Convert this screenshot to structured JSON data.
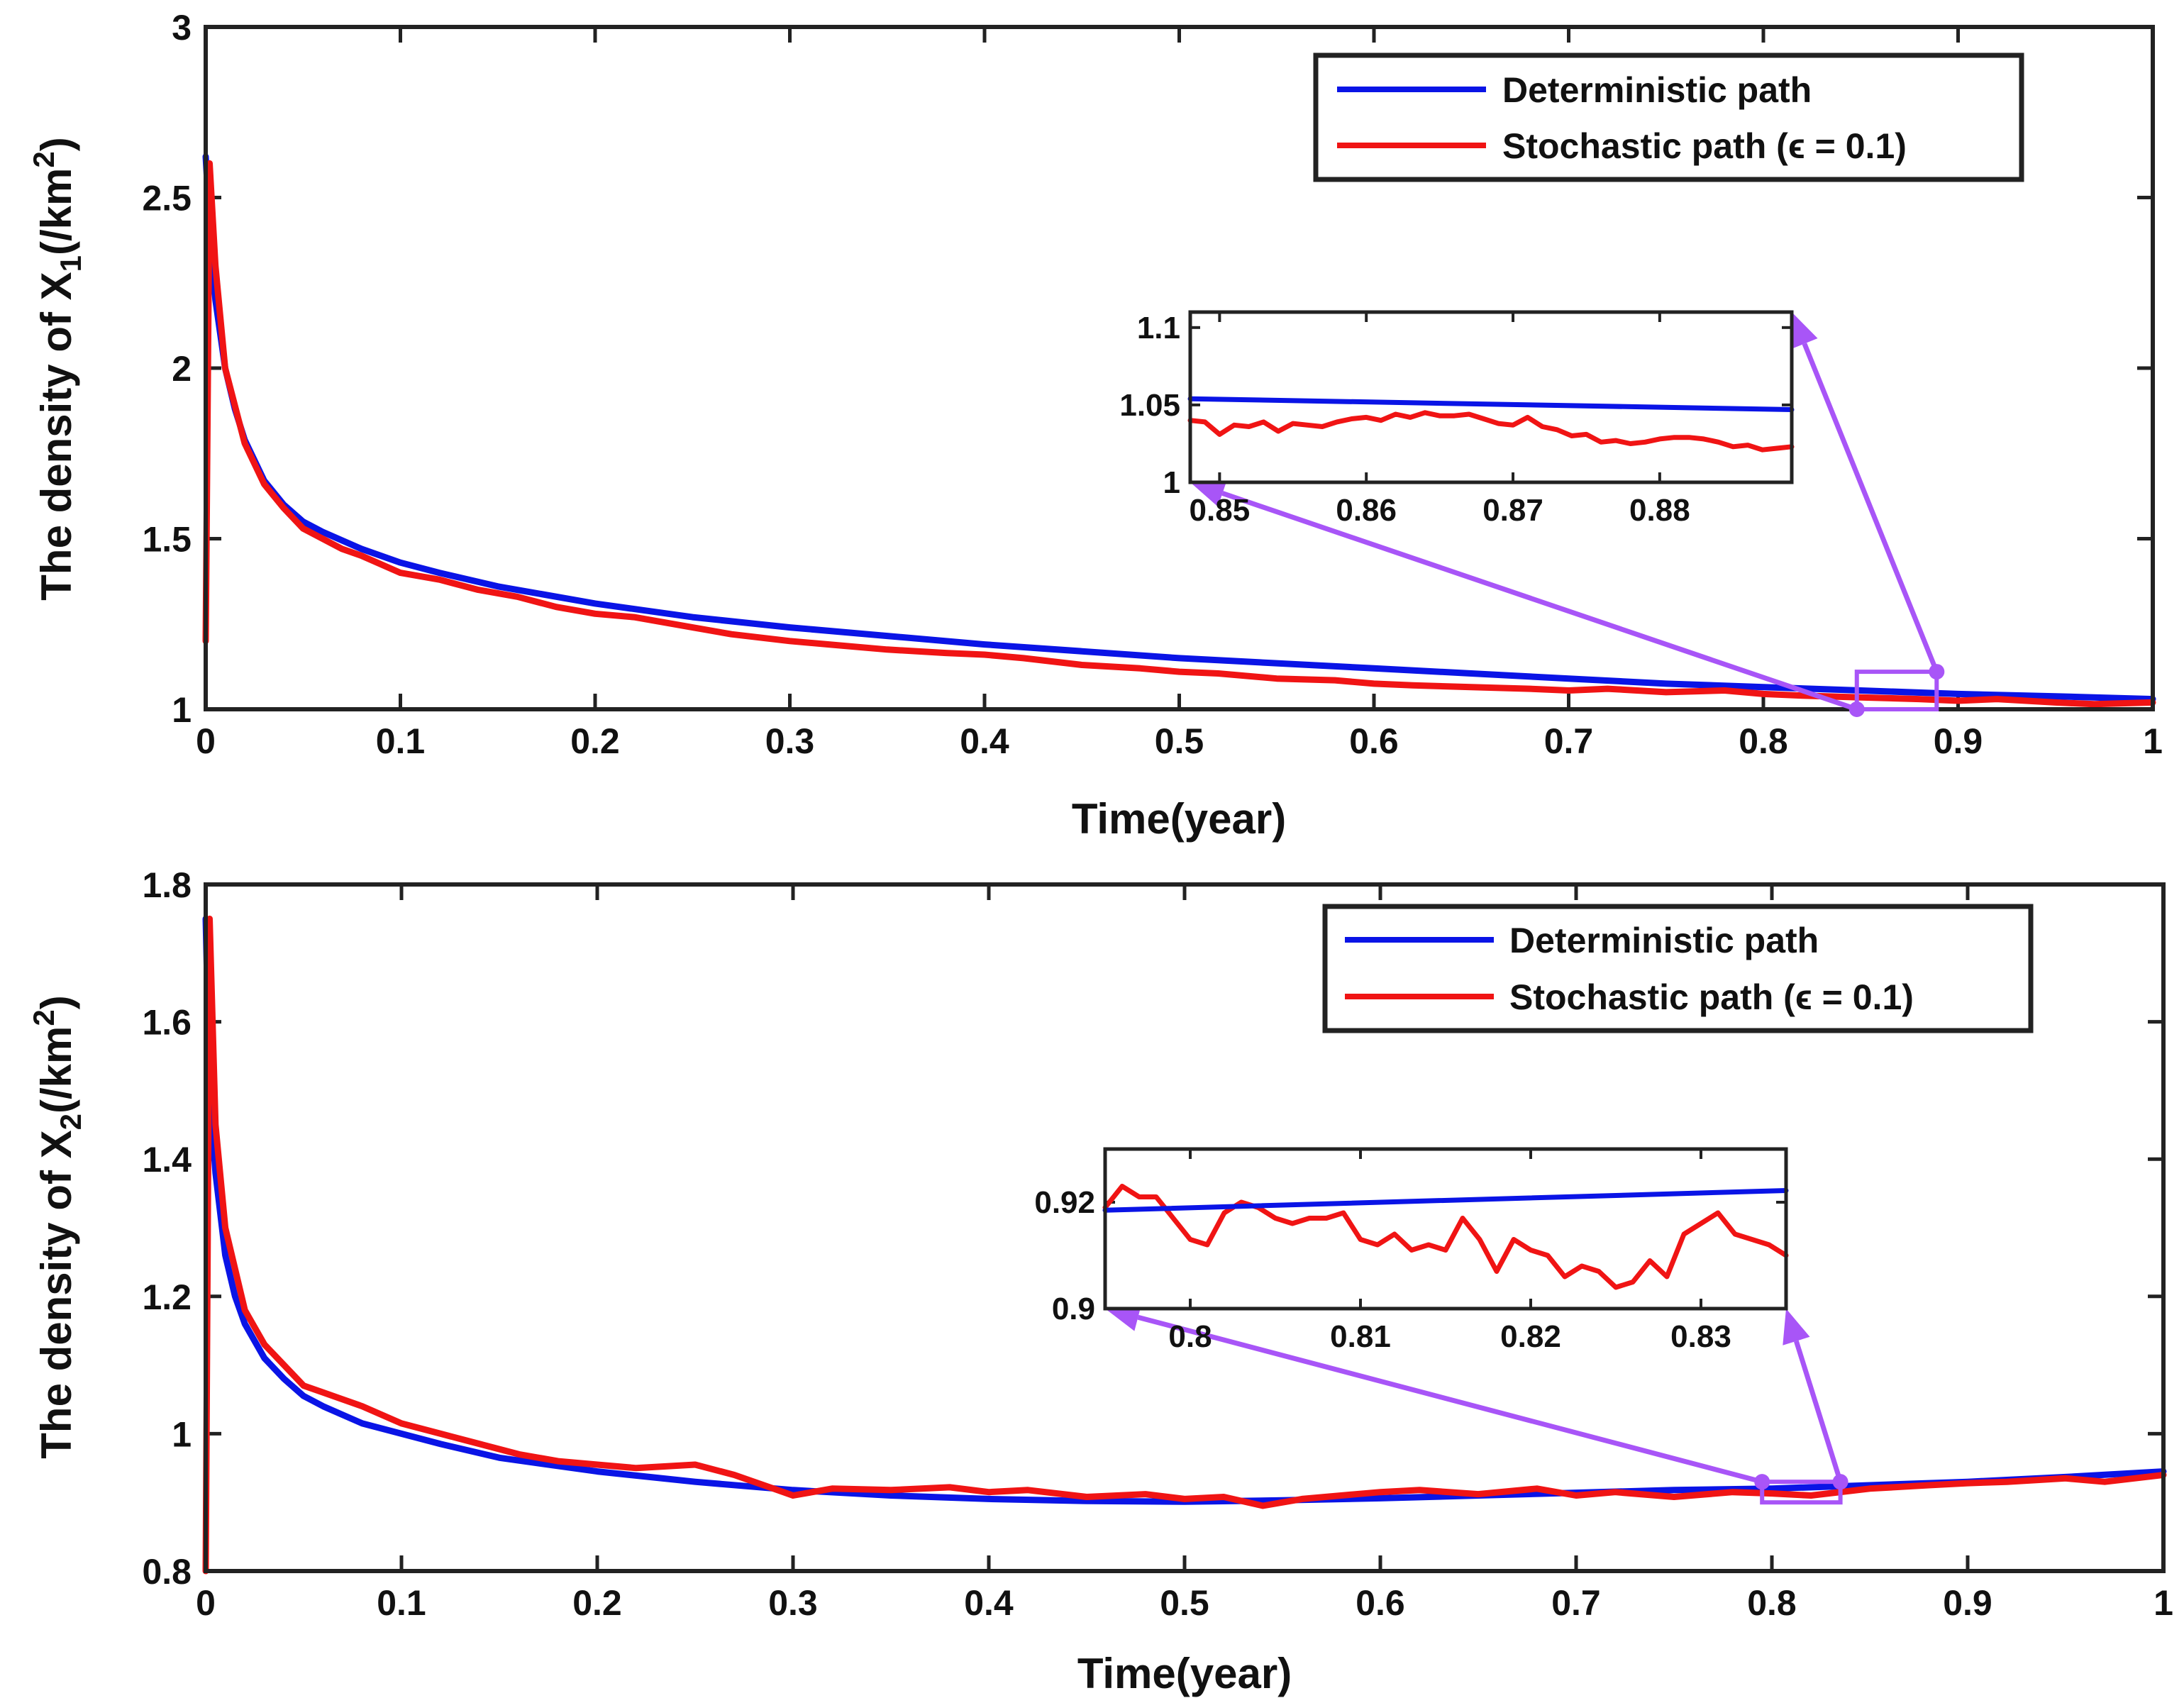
{
  "colors": {
    "deterministic": "#0a14e6",
    "stochastic": "#f01414",
    "zoom": "#a855f7",
    "axis": "#222222"
  },
  "chart_data": [
    {
      "type": "line",
      "panel": "top",
      "xlabel": "Time(year)",
      "ylabel_prefix": "The density of X",
      "ylabel_subscript": "1",
      "ylabel_units": "(/km",
      "ylabel_units_sup": "2",
      "ylabel_units_close": ")",
      "xlim": [
        0,
        1
      ],
      "ylim": [
        1,
        3
      ],
      "xticks": [
        0,
        0.1,
        0.2,
        0.3,
        0.4,
        0.5,
        0.6,
        0.7,
        0.8,
        0.9,
        1
      ],
      "xtick_labels": [
        "0",
        "0.1",
        "0.2",
        "0.3",
        "0.4",
        "0.5",
        "0.6",
        "0.7",
        "0.8",
        "0.9",
        "1"
      ],
      "yticks": [
        1,
        1.5,
        2,
        2.5,
        3
      ],
      "ytick_labels": [
        "1",
        "1.5",
        "2",
        "2.5",
        "3"
      ],
      "legend": {
        "position": "top-right",
        "entries": [
          "Deterministic path",
          "Stochastic path (ϵ = 0.1)"
        ]
      },
      "series": [
        {
          "name": "Deterministic path",
          "x": [
            0,
            0.002,
            0.005,
            0.01,
            0.015,
            0.02,
            0.03,
            0.04,
            0.05,
            0.06,
            0.08,
            0.1,
            0.12,
            0.15,
            0.2,
            0.25,
            0.3,
            0.35,
            0.4,
            0.45,
            0.5,
            0.55,
            0.6,
            0.65,
            0.7,
            0.75,
            0.8,
            0.85,
            0.9,
            0.95,
            1.0
          ],
          "y": [
            2.62,
            2.42,
            2.2,
            2.0,
            1.88,
            1.79,
            1.67,
            1.6,
            1.55,
            1.52,
            1.47,
            1.43,
            1.4,
            1.36,
            1.31,
            1.27,
            1.24,
            1.215,
            1.19,
            1.17,
            1.15,
            1.135,
            1.12,
            1.105,
            1.09,
            1.075,
            1.065,
            1.055,
            1.045,
            1.038,
            1.03
          ]
        },
        {
          "name": "Stochastic path (ϵ = 0.1)",
          "x": [
            0,
            0.002,
            0.005,
            0.01,
            0.02,
            0.03,
            0.04,
            0.05,
            0.06,
            0.07,
            0.08,
            0.1,
            0.12,
            0.14,
            0.16,
            0.18,
            0.2,
            0.22,
            0.25,
            0.27,
            0.3,
            0.32,
            0.35,
            0.38,
            0.4,
            0.42,
            0.45,
            0.48,
            0.5,
            0.52,
            0.55,
            0.58,
            0.6,
            0.62,
            0.65,
            0.68,
            0.7,
            0.72,
            0.75,
            0.78,
            0.8,
            0.82,
            0.85,
            0.88,
            0.9,
            0.92,
            0.95,
            0.97,
            1.0
          ],
          "y": [
            1.2,
            2.6,
            2.3,
            2.0,
            1.78,
            1.66,
            1.59,
            1.53,
            1.5,
            1.47,
            1.45,
            1.4,
            1.38,
            1.35,
            1.33,
            1.3,
            1.28,
            1.27,
            1.24,
            1.22,
            1.2,
            1.19,
            1.175,
            1.165,
            1.16,
            1.15,
            1.13,
            1.12,
            1.11,
            1.105,
            1.09,
            1.085,
            1.075,
            1.07,
            1.065,
            1.06,
            1.055,
            1.06,
            1.05,
            1.055,
            1.045,
            1.04,
            1.035,
            1.03,
            1.025,
            1.03,
            1.02,
            1.015,
            1.02
          ]
        }
      ],
      "zoom_box": {
        "xlim": [
          0.848,
          0.889
        ],
        "ylim": [
          1.0,
          1.11
        ]
      },
      "inset": {
        "xlim": [
          0.848,
          0.889
        ],
        "ylim": [
          1.0,
          1.11
        ],
        "xticks": [
          0.85,
          0.86,
          0.87,
          0.88
        ],
        "xtick_labels": [
          "0.85",
          "0.86",
          "0.87",
          "0.88"
        ],
        "yticks": [
          1,
          1.05,
          1.1
        ],
        "ytick_labels": [
          "1",
          "1.05",
          "1.1"
        ],
        "series": [
          {
            "name": "Deterministic path",
            "x": [
              0.848,
              0.889
            ],
            "y": [
              1.054,
              1.047
            ]
          },
          {
            "name": "Stochastic path (ϵ = 0.1)",
            "x": [
              0.848,
              0.849,
              0.85,
              0.851,
              0.852,
              0.853,
              0.854,
              0.855,
              0.856,
              0.857,
              0.858,
              0.859,
              0.86,
              0.861,
              0.862,
              0.863,
              0.864,
              0.865,
              0.866,
              0.867,
              0.868,
              0.869,
              0.87,
              0.871,
              0.872,
              0.873,
              0.874,
              0.875,
              0.876,
              0.877,
              0.878,
              0.879,
              0.88,
              0.881,
              0.882,
              0.883,
              0.884,
              0.885,
              0.886,
              0.887,
              0.888,
              0.889
            ],
            "y": [
              1.04,
              1.039,
              1.031,
              1.037,
              1.036,
              1.039,
              1.033,
              1.038,
              1.037,
              1.036,
              1.039,
              1.041,
              1.042,
              1.04,
              1.044,
              1.042,
              1.045,
              1.043,
              1.043,
              1.044,
              1.041,
              1.038,
              1.037,
              1.042,
              1.036,
              1.034,
              1.03,
              1.031,
              1.026,
              1.027,
              1.025,
              1.026,
              1.028,
              1.029,
              1.029,
              1.028,
              1.026,
              1.023,
              1.024,
              1.021,
              1.022,
              1.023
            ]
          }
        ]
      }
    },
    {
      "type": "line",
      "panel": "bottom",
      "xlabel": "Time(year)",
      "ylabel_prefix": "The density of  X",
      "ylabel_subscript": "2",
      "ylabel_units": "(/km",
      "ylabel_units_sup": "2",
      "ylabel_units_close": ")",
      "xlim": [
        0,
        1
      ],
      "ylim": [
        0.8,
        1.8
      ],
      "xticks": [
        0,
        0.1,
        0.2,
        0.3,
        0.4,
        0.5,
        0.6,
        0.7,
        0.8,
        0.9,
        1
      ],
      "xtick_labels": [
        "0",
        "0.1",
        "0.2",
        "0.3",
        "0.4",
        "0.5",
        "0.6",
        "0.7",
        "0.8",
        "0.9",
        "1"
      ],
      "yticks": [
        0.8,
        1,
        1.2,
        1.4,
        1.6,
        1.8
      ],
      "ytick_labels": [
        "0.8",
        "1",
        "1.2",
        "1.4",
        "1.6",
        "1.8"
      ],
      "legend": {
        "position": "top-right",
        "entries": [
          "Deterministic path",
          "Stochastic path (ϵ = 0.1)"
        ]
      },
      "series": [
        {
          "name": "Deterministic path",
          "x": [
            0,
            0.002,
            0.005,
            0.01,
            0.015,
            0.02,
            0.03,
            0.04,
            0.05,
            0.06,
            0.08,
            0.1,
            0.12,
            0.15,
            0.2,
            0.25,
            0.3,
            0.35,
            0.4,
            0.45,
            0.5,
            0.55,
            0.6,
            0.65,
            0.7,
            0.75,
            0.8,
            0.85,
            0.9,
            0.95,
            1.0
          ],
          "y": [
            1.75,
            1.5,
            1.38,
            1.26,
            1.2,
            1.16,
            1.11,
            1.08,
            1.055,
            1.04,
            1.015,
            1.0,
            0.985,
            0.965,
            0.945,
            0.93,
            0.918,
            0.91,
            0.905,
            0.902,
            0.901,
            0.903,
            0.906,
            0.91,
            0.914,
            0.918,
            0.92,
            0.925,
            0.93,
            0.937,
            0.945
          ]
        },
        {
          "name": "Stochastic path (ϵ = 0.1)",
          "x": [
            0,
            0.002,
            0.005,
            0.01,
            0.02,
            0.03,
            0.04,
            0.05,
            0.06,
            0.07,
            0.08,
            0.1,
            0.12,
            0.14,
            0.16,
            0.18,
            0.2,
            0.22,
            0.25,
            0.27,
            0.29,
            0.3,
            0.32,
            0.35,
            0.38,
            0.4,
            0.42,
            0.45,
            0.48,
            0.5,
            0.52,
            0.54,
            0.56,
            0.58,
            0.6,
            0.62,
            0.65,
            0.68,
            0.7,
            0.72,
            0.75,
            0.78,
            0.8,
            0.82,
            0.85,
            0.88,
            0.9,
            0.92,
            0.95,
            0.97,
            1.0
          ],
          "y": [
            0.8,
            1.75,
            1.45,
            1.3,
            1.18,
            1.13,
            1.1,
            1.07,
            1.06,
            1.05,
            1.04,
            1.015,
            1.0,
            0.985,
            0.97,
            0.96,
            0.955,
            0.95,
            0.955,
            0.94,
            0.92,
            0.91,
            0.92,
            0.918,
            0.922,
            0.915,
            0.918,
            0.908,
            0.912,
            0.905,
            0.908,
            0.895,
            0.905,
            0.91,
            0.915,
            0.918,
            0.912,
            0.92,
            0.91,
            0.915,
            0.908,
            0.915,
            0.913,
            0.91,
            0.92,
            0.925,
            0.928,
            0.93,
            0.935,
            0.93,
            0.94
          ]
        }
      ],
      "zoom_box": {
        "xlim": [
          0.795,
          0.835
        ],
        "ylim": [
          0.9,
          0.93
        ]
      },
      "inset": {
        "xlim": [
          0.795,
          0.835
        ],
        "ylim": [
          0.9,
          0.93
        ],
        "xticks": [
          0.8,
          0.81,
          0.82,
          0.83
        ],
        "xtick_labels": [
          "0.8",
          "0.81",
          "0.82",
          "0.83"
        ],
        "yticks": [
          0.9,
          0.92
        ],
        "ytick_labels": [
          "0.9",
          "0.92"
        ],
        "series": [
          {
            "name": "Deterministic path",
            "x": [
              0.795,
              0.835
            ],
            "y": [
              0.9185,
              0.9222
            ]
          },
          {
            "name": "Stochastic path (ϵ = 0.1)",
            "x": [
              0.795,
              0.796,
              0.797,
              0.798,
              0.799,
              0.8,
              0.801,
              0.802,
              0.803,
              0.804,
              0.805,
              0.806,
              0.807,
              0.808,
              0.809,
              0.81,
              0.811,
              0.812,
              0.813,
              0.814,
              0.815,
              0.816,
              0.817,
              0.818,
              0.819,
              0.82,
              0.821,
              0.822,
              0.823,
              0.824,
              0.825,
              0.826,
              0.827,
              0.828,
              0.829,
              0.83,
              0.831,
              0.832,
              0.833,
              0.834,
              0.835
            ],
            "y": [
              0.919,
              0.923,
              0.921,
              0.921,
              0.917,
              0.913,
              0.912,
              0.918,
              0.92,
              0.919,
              0.917,
              0.916,
              0.917,
              0.917,
              0.918,
              0.913,
              0.912,
              0.914,
              0.911,
              0.912,
              0.911,
              0.917,
              0.913,
              0.907,
              0.913,
              0.911,
              0.91,
              0.906,
              0.908,
              0.907,
              0.904,
              0.905,
              0.909,
              0.906,
              0.914,
              0.916,
              0.918,
              0.914,
              0.913,
              0.912,
              0.91
            ]
          }
        ]
      }
    }
  ]
}
